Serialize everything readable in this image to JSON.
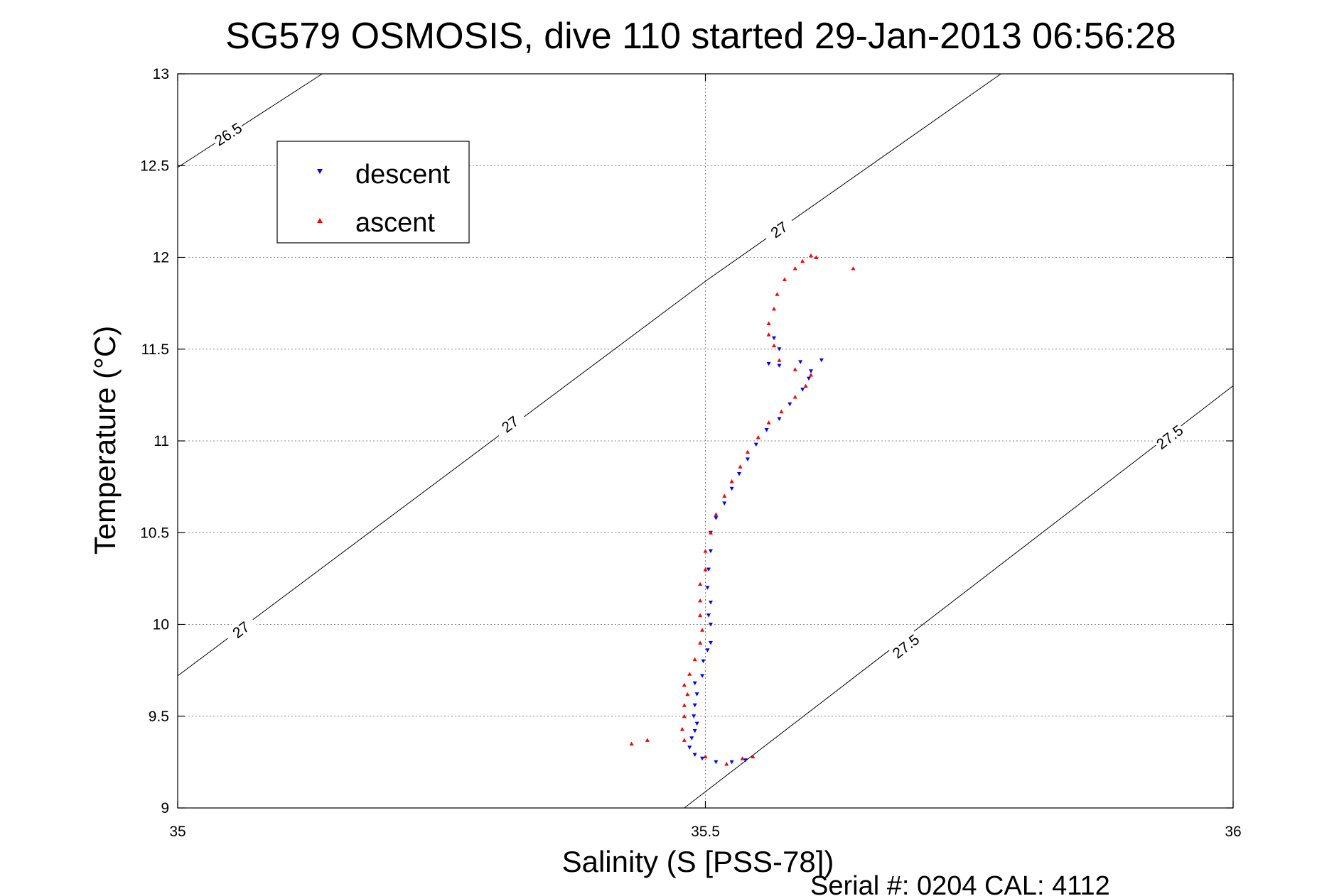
{
  "chart_data": {
    "type": "scatter",
    "title": "SG579 OSMOSIS, dive 110 started 29-Jan-2013 06:56:28",
    "xlabel": "Salinity (S [PSS-78])",
    "ylabel": "Temperature (°C)",
    "xlim": [
      35,
      36
    ],
    "ylim": [
      9,
      13
    ],
    "x_ticks": [
      "35",
      "35.5",
      "36"
    ],
    "y_ticks": [
      "9",
      "9.5",
      "10",
      "10.5",
      "11",
      "11.5",
      "12",
      "12.5",
      "13"
    ],
    "grid": true,
    "legend_position": "top-left",
    "footer": "Serial #: 0204  CAL: 4112",
    "series": [
      {
        "name": "descent",
        "color": "#0000ff",
        "marker": "triangle-down",
        "points": [
          [
            35.497,
            9.27
          ],
          [
            35.49,
            9.29
          ],
          [
            35.485,
            9.33
          ],
          [
            35.487,
            9.38
          ],
          [
            35.49,
            9.42
          ],
          [
            35.492,
            9.46
          ],
          [
            35.489,
            9.5
          ],
          [
            35.49,
            9.56
          ],
          [
            35.492,
            9.62
          ],
          [
            35.49,
            9.68
          ],
          [
            35.497,
            9.72
          ],
          [
            35.498,
            9.8
          ],
          [
            35.502,
            9.86
          ],
          [
            35.505,
            9.9
          ],
          [
            35.505,
            10.0
          ],
          [
            35.503,
            10.05
          ],
          [
            35.505,
            10.12
          ],
          [
            35.502,
            10.2
          ],
          [
            35.503,
            10.3
          ],
          [
            35.505,
            10.4
          ],
          [
            35.505,
            10.5
          ],
          [
            35.51,
            10.58
          ],
          [
            35.518,
            10.66
          ],
          [
            35.525,
            10.74
          ],
          [
            35.532,
            10.82
          ],
          [
            35.54,
            10.9
          ],
          [
            35.548,
            10.98
          ],
          [
            35.558,
            11.06
          ],
          [
            35.57,
            11.12
          ],
          [
            35.58,
            11.2
          ],
          [
            35.592,
            11.28
          ],
          [
            35.598,
            11.34
          ],
          [
            35.6,
            11.38
          ],
          [
            35.61,
            11.44
          ],
          [
            35.59,
            11.43
          ],
          [
            35.57,
            11.41
          ],
          [
            35.56,
            11.42
          ],
          [
            35.57,
            11.5
          ],
          [
            35.565,
            11.56
          ],
          [
            35.51,
            9.25
          ],
          [
            35.525,
            9.25
          ],
          [
            35.538,
            9.26
          ]
        ]
      },
      {
        "name": "ascent",
        "color": "#ff0000",
        "marker": "triangle-up",
        "points": [
          [
            35.43,
            9.35
          ],
          [
            35.445,
            9.37
          ],
          [
            35.48,
            9.37
          ],
          [
            35.478,
            9.43
          ],
          [
            35.48,
            9.5
          ],
          [
            35.48,
            9.56
          ],
          [
            35.483,
            9.62
          ],
          [
            35.48,
            9.67
          ],
          [
            35.485,
            9.73
          ],
          [
            35.49,
            9.81
          ],
          [
            35.495,
            9.9
          ],
          [
            35.497,
            9.97
          ],
          [
            35.495,
            10.05
          ],
          [
            35.495,
            10.13
          ],
          [
            35.495,
            10.22
          ],
          [
            35.5,
            10.3
          ],
          [
            35.5,
            10.4
          ],
          [
            35.505,
            10.5
          ],
          [
            35.51,
            10.6
          ],
          [
            35.518,
            10.7
          ],
          [
            35.525,
            10.78
          ],
          [
            35.533,
            10.86
          ],
          [
            35.54,
            10.94
          ],
          [
            35.55,
            11.02
          ],
          [
            35.56,
            11.1
          ],
          [
            35.572,
            11.16
          ],
          [
            35.585,
            11.24
          ],
          [
            35.595,
            11.3
          ],
          [
            35.6,
            11.36
          ],
          [
            35.585,
            11.39
          ],
          [
            35.57,
            11.44
          ],
          [
            35.565,
            11.52
          ],
          [
            35.56,
            11.58
          ],
          [
            35.56,
            11.64
          ],
          [
            35.565,
            11.72
          ],
          [
            35.568,
            11.8
          ],
          [
            35.575,
            11.88
          ],
          [
            35.585,
            11.94
          ],
          [
            35.592,
            11.98
          ],
          [
            35.6,
            12.01
          ],
          [
            35.605,
            12.0
          ],
          [
            35.64,
            11.94
          ],
          [
            35.5,
            9.28
          ],
          [
            35.52,
            9.24
          ],
          [
            35.535,
            9.27
          ],
          [
            35.545,
            9.28
          ]
        ]
      }
    ],
    "contours": [
      {
        "label": "26.5",
        "points": [
          [
            35,
            12.49
          ],
          [
            35.137,
            13.0
          ]
        ],
        "label_positions": [
          [
            35.048,
            12.67
          ]
        ]
      },
      {
        "label": "27",
        "points": [
          [
            35,
            9.72
          ],
          [
            35.5,
            11.87
          ],
          [
            35.78,
            13.0
          ]
        ],
        "label_positions": [
          [
            35.06,
            9.97
          ],
          [
            35.315,
            11.09
          ],
          [
            35.57,
            12.15
          ]
        ]
      },
      {
        "label": "27.5",
        "points": [
          [
            35.48,
            9.0
          ],
          [
            36,
            11.3
          ]
        ],
        "label_positions": [
          [
            35.69,
            9.88
          ],
          [
            35.94,
            11.02
          ]
        ]
      }
    ]
  }
}
